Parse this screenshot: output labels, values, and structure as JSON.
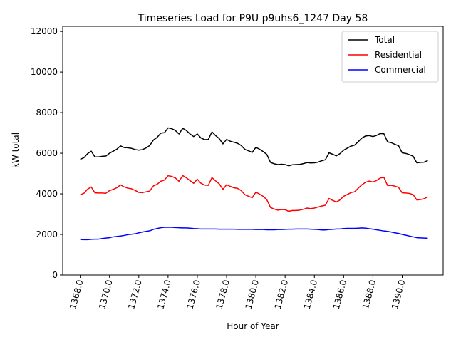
{
  "chart_data": {
    "type": "line",
    "title": "Timeseries Load for P9U p9uhs6_1247  Day 58",
    "xlabel": "Hour of Year",
    "ylabel": "kW total",
    "xlim": [
      1366.8,
      1392.8
    ],
    "ylim": [
      0,
      12250
    ],
    "x_ticks": [
      1368.0,
      1370.0,
      1372.0,
      1374.0,
      1376.0,
      1378.0,
      1380.0,
      1382.0,
      1384.0,
      1386.0,
      1388.0,
      1390.0
    ],
    "x_tick_labels": [
      "1368.0",
      "1370.0",
      "1372.0",
      "1374.0",
      "1376.0",
      "1378.0",
      "1380.0",
      "1382.0",
      "1384.0",
      "1386.0",
      "1388.0",
      "1390.0"
    ],
    "y_ticks": [
      0,
      2000,
      4000,
      6000,
      8000,
      10000,
      12000
    ],
    "y_tick_labels": [
      "0",
      "2000",
      "4000",
      "6000",
      "8000",
      "10000",
      "12000"
    ],
    "grid": false,
    "legend_position": "top-right",
    "x_start": 1368.0,
    "x_step": 0.25,
    "series": [
      {
        "name": "Total",
        "color": "#000000",
        "values": [
          5700,
          5780,
          5980,
          6100,
          5820,
          5820,
          5850,
          5860,
          6000,
          6100,
          6200,
          6360,
          6280,
          6270,
          6240,
          6180,
          6150,
          6180,
          6260,
          6380,
          6650,
          6780,
          6990,
          7010,
          7250,
          7210,
          7120,
          6950,
          7230,
          7120,
          6950,
          6820,
          6950,
          6750,
          6670,
          6680,
          7050,
          6870,
          6720,
          6460,
          6680,
          6590,
          6540,
          6490,
          6380,
          6190,
          6120,
          6040,
          6290,
          6200,
          6080,
          5940,
          5550,
          5480,
          5440,
          5460,
          5440,
          5380,
          5430,
          5440,
          5450,
          5490,
          5540,
          5520,
          5530,
          5560,
          5630,
          5680,
          6020,
          5950,
          5870,
          5980,
          6150,
          6250,
          6350,
          6400,
          6570,
          6750,
          6850,
          6870,
          6820,
          6880,
          6970,
          6960,
          6560,
          6520,
          6440,
          6370,
          6020,
          5990,
          5930,
          5850,
          5530,
          5550,
          5560,
          5640
        ]
      },
      {
        "name": "Residential",
        "color": "#ff0000",
        "values": [
          3950,
          4030,
          4230,
          4340,
          4050,
          4040,
          4040,
          4030,
          4160,
          4220,
          4300,
          4440,
          4340,
          4280,
          4250,
          4170,
          4070,
          4060,
          4100,
          4140,
          4390,
          4470,
          4620,
          4680,
          4890,
          4860,
          4780,
          4620,
          4900,
          4790,
          4650,
          4520,
          4720,
          4520,
          4430,
          4420,
          4800,
          4640,
          4490,
          4220,
          4450,
          4370,
          4300,
          4270,
          4160,
          3960,
          3880,
          3810,
          4080,
          3990,
          3880,
          3710,
          3330,
          3250,
          3200,
          3230,
          3220,
          3140,
          3180,
          3180,
          3200,
          3240,
          3300,
          3270,
          3300,
          3350,
          3400,
          3440,
          3770,
          3680,
          3600,
          3700,
          3880,
          3970,
          4060,
          4100,
          4280,
          4450,
          4570,
          4630,
          4580,
          4660,
          4780,
          4810,
          4410,
          4420,
          4380,
          4320,
          4050,
          4040,
          4020,
          3960,
          3700,
          3720,
          3760,
          3850
        ]
      },
      {
        "name": "Commercial",
        "color": "#0000ff",
        "values": [
          1750,
          1740,
          1740,
          1760,
          1770,
          1770,
          1800,
          1820,
          1840,
          1880,
          1900,
          1920,
          1950,
          1990,
          2010,
          2030,
          2080,
          2120,
          2150,
          2180,
          2250,
          2290,
          2330,
          2350,
          2350,
          2350,
          2340,
          2330,
          2320,
          2320,
          2310,
          2290,
          2280,
          2270,
          2270,
          2270,
          2270,
          2270,
          2260,
          2260,
          2260,
          2260,
          2260,
          2250,
          2250,
          2250,
          2250,
          2250,
          2240,
          2240,
          2240,
          2230,
          2230,
          2230,
          2240,
          2240,
          2250,
          2260,
          2260,
          2270,
          2270,
          2270,
          2270,
          2260,
          2250,
          2240,
          2220,
          2220,
          2240,
          2250,
          2270,
          2270,
          2290,
          2300,
          2300,
          2300,
          2310,
          2320,
          2310,
          2280,
          2260,
          2230,
          2200,
          2170,
          2150,
          2120,
          2080,
          2050,
          2000,
          1960,
          1920,
          1880,
          1840,
          1830,
          1820,
          1810
        ]
      }
    ]
  }
}
